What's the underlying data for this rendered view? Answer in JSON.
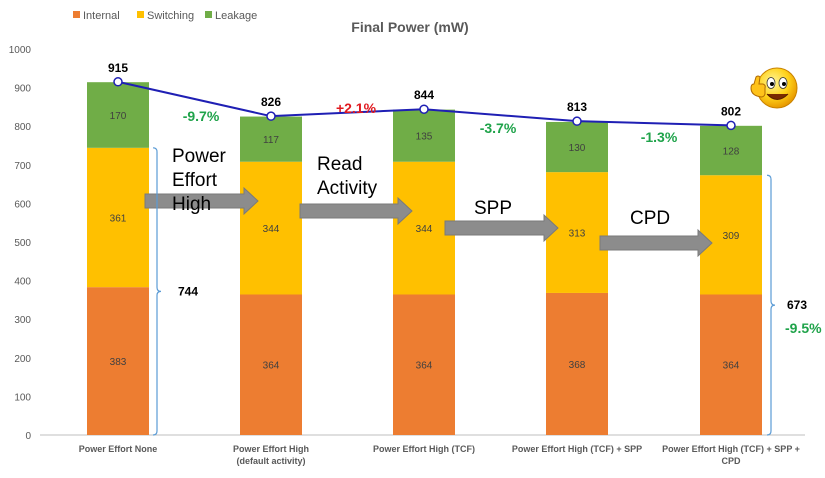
{
  "chart_data": {
    "type": "bar",
    "stacked": true,
    "title": "Final Power (mW)",
    "categories": [
      [
        "Power Effort None"
      ],
      [
        "Power Effort High",
        "(default activity)"
      ],
      [
        "Power Effort High (TCF)"
      ],
      [
        "Power Effort High (TCF) + SPP"
      ],
      [
        "Power Effort High (TCF) + SPP +",
        "CPD"
      ]
    ],
    "series": [
      {
        "name": "Internal",
        "color": "#ed7d31",
        "values": [
          383,
          364,
          364,
          368,
          364
        ]
      },
      {
        "name": "Switching",
        "color": "#ffc000",
        "values": [
          361,
          344,
          344,
          313,
          309
        ]
      },
      {
        "name": "Leakage",
        "color": "#70ad47",
        "values": [
          170,
          117,
          135,
          130,
          128
        ]
      }
    ],
    "totals": [
      915,
      826,
      844,
      813,
      802
    ],
    "total_line_color": "#1f1fb4",
    "ylim": [
      0,
      1000
    ],
    "yticks": [
      0,
      100,
      200,
      300,
      400,
      500,
      600,
      700,
      800,
      900,
      1000
    ],
    "legend_position": "top-left",
    "grid": false,
    "changes": [
      {
        "text": "-9.7%",
        "color": "green"
      },
      {
        "text": "+2.1%",
        "color": "red"
      },
      {
        "text": "-3.7%",
        "color": "green"
      },
      {
        "text": "-1.3%",
        "color": "green"
      }
    ],
    "step_labels": [
      [
        "Power",
        "Effort",
        "High"
      ],
      [
        "Read",
        "Activity"
      ],
      [
        "SPP"
      ],
      [
        "CPD"
      ]
    ],
    "brackets": [
      {
        "label": "744"
      },
      {
        "label": "673",
        "change": "-9.5%"
      }
    ]
  },
  "decoration": {
    "icon": "thumbs-up-smiley-icon"
  }
}
